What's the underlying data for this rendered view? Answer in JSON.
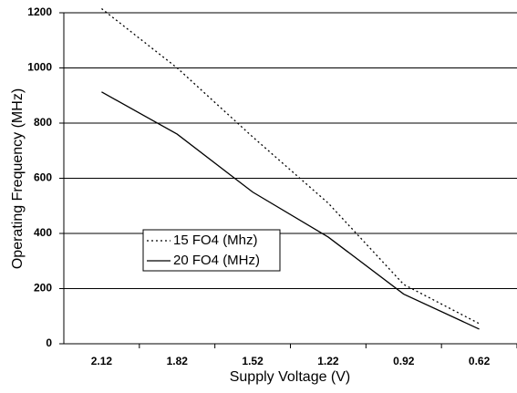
{
  "chart_data": {
    "type": "line",
    "x_label": "Supply Voltage (V)",
    "y_label": "Operating Frequency (MHz)",
    "categories": [
      "2.12",
      "1.82",
      "1.52",
      "1.22",
      "0.92",
      "0.62"
    ],
    "series": [
      {
        "name": "15 FO4 (Mhz)",
        "color": "#000000",
        "dash": "dotted",
        "values": [
          1215,
          1000,
          750,
          510,
          215,
          73
        ]
      },
      {
        "name": "20 FO4 (MHz)",
        "color": "#000000",
        "dash": "solid",
        "values": [
          913,
          760,
          550,
          387,
          180,
          53
        ]
      }
    ],
    "ylim": [
      0,
      1200
    ],
    "yticks": [
      0,
      200,
      400,
      600,
      800,
      1000,
      1200
    ],
    "grid": true
  }
}
